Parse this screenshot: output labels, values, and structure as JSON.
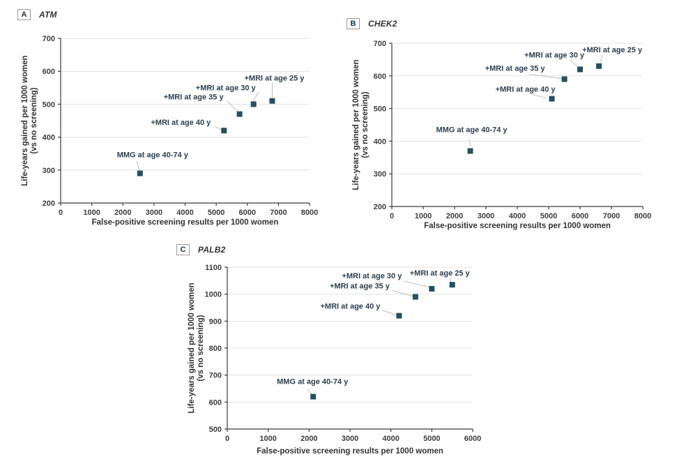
{
  "figure": {
    "background": "#ffffff",
    "marker_color": "#24505f",
    "marker_size": 8,
    "axis_color": "#3a3a3a",
    "grid_color": "#e2e2e2",
    "leader_color": "#bcbcbc",
    "panel_letter_color": "#16324f",
    "panel_box_border": "#999999",
    "gene_color": "#333333"
  },
  "chart_data": [
    {
      "type": "scatter",
      "panel": "A",
      "title": "ATM",
      "xlabel": "False-positive screening results per 1000 women",
      "ylabel_lines": [
        "Life-years gained per 1000 women",
        "(vs no screening)"
      ],
      "xlim": [
        0,
        8000
      ],
      "ylim": [
        200,
        700
      ],
      "xticks": [
        0,
        1000,
        2000,
        3000,
        4000,
        5000,
        6000,
        7000,
        8000
      ],
      "yticks": [
        200,
        300,
        400,
        500,
        600,
        700
      ],
      "grid": "horizontal",
      "marker": "square",
      "points": [
        {
          "label": "MMG at age 40-74 y",
          "x": 2550,
          "y": 290,
          "anchor": "middle",
          "label_offset": [
            18,
            -23
          ],
          "leader": [
            -5,
            -18,
            -1,
            -5
          ]
        },
        {
          "label": "+MRI at age 40 y",
          "x": 5250,
          "y": 420,
          "anchor": "end",
          "label_offset": [
            -19,
            -8
          ],
          "leader": [
            -13,
            -6,
            -3,
            -1
          ]
        },
        {
          "label": "+MRI at age 35 y",
          "x": 5750,
          "y": 470,
          "anchor": "end",
          "label_offset": [
            -23,
            -21
          ],
          "leader": [
            -18,
            -19,
            -1,
            -2
          ]
        },
        {
          "label": "+MRI at age 30 y",
          "x": 6200,
          "y": 500,
          "anchor": "end",
          "label_offset": [
            3,
            -20
          ],
          "leader": [
            7,
            -18,
            -2,
            -1
          ]
        },
        {
          "label": "+MRI at age 25 y",
          "x": 6800,
          "y": 510,
          "anchor": "middle",
          "label_offset": [
            3,
            -29
          ],
          "leader": [
            0,
            -26,
            0,
            -5
          ]
        }
      ],
      "layout": {
        "svg": [
          20,
          36,
          440,
          300
        ],
        "plot": [
          67,
          19,
          424,
          255
        ],
        "xtitle_y": 286,
        "ytitle_x": 19
      }
    },
    {
      "type": "scatter",
      "panel": "B",
      "title": "CHEK2",
      "xlabel": "False-positive screening results per 1000 women",
      "ylabel_lines": [
        "Life-years gained per 1000 women",
        "(vs no screening)"
      ],
      "xlim": [
        0,
        8000
      ],
      "ylim": [
        200,
        700
      ],
      "xticks": [
        0,
        1000,
        2000,
        3000,
        4000,
        5000,
        6000,
        7000,
        8000
      ],
      "yticks": [
        200,
        300,
        400,
        500,
        600,
        700
      ],
      "grid": "horizontal",
      "marker": "square",
      "points": [
        {
          "label": "MMG at age 40-74 y",
          "x": 2500,
          "y": 370,
          "anchor": "middle",
          "label_offset": [
            2,
            -27
          ],
          "leader": [
            -1,
            -17,
            0,
            -7
          ]
        },
        {
          "label": "+MRI at age 40 y",
          "x": 5100,
          "y": 530,
          "anchor": "end",
          "label_offset": [
            5,
            -10
          ],
          "leader": [
            -28,
            -6,
            -7,
            -1
          ]
        },
        {
          "label": "+MRI at age 35 y",
          "x": 5500,
          "y": 590,
          "anchor": "end",
          "label_offset": [
            -28,
            -12
          ],
          "leader": [
            -51,
            -7,
            -4,
            -1
          ]
        },
        {
          "label": "+MRI at age 30 y",
          "x": 6000,
          "y": 620,
          "anchor": "end",
          "label_offset": [
            6,
            -17
          ],
          "leader": [
            -15,
            -14,
            -4,
            -4
          ]
        },
        {
          "label": "+MRI at age 25 y",
          "x": 6600,
          "y": 630,
          "anchor": "end",
          "label_offset": [
            62,
            -20
          ],
          "leader": [
            5,
            -16,
            2,
            -5
          ]
        }
      ],
      "layout": {
        "svg": [
          492,
          44,
          450,
          300
        ],
        "plot": [
          70,
          18,
          430,
          252
        ],
        "xtitle_y": 283,
        "ytitle_x": 22
      }
    },
    {
      "type": "scatter",
      "panel": "C",
      "title": "PALB2",
      "xlabel": "False-positive screening results per 1000 women",
      "ylabel_lines": [
        "Life-years gained per 1000 women",
        "(vs no screening)"
      ],
      "xlim": [
        0,
        6000
      ],
      "ylim": [
        500,
        1100
      ],
      "xticks": [
        0,
        1000,
        2000,
        3000,
        4000,
        5000,
        6000
      ],
      "yticks": [
        500,
        600,
        700,
        800,
        900,
        1000,
        1100
      ],
      "grid": "horizontal",
      "marker": "square",
      "points": [
        {
          "label": "MMG at age 40-74 y",
          "x": 2100,
          "y": 620,
          "anchor": "middle",
          "label_offset": [
            -1,
            -18
          ],
          "leader": [
            -8,
            -11,
            -2,
            -3
          ]
        },
        {
          "label": "+MRI at age 40 y",
          "x": 4200,
          "y": 920,
          "anchor": "end",
          "label_offset": [
            -27,
            -10
          ],
          "leader": [
            -24,
            -8,
            -4,
            -1
          ]
        },
        {
          "label": "+MRI at age 35 y",
          "x": 4600,
          "y": 990,
          "anchor": "end",
          "label_offset": [
            -37,
            -12
          ],
          "leader": [
            -34,
            -9,
            -4,
            -1
          ]
        },
        {
          "label": "+MRI at age 30 y",
          "x": 5000,
          "y": 1020,
          "anchor": "end",
          "label_offset": [
            -43,
            -15
          ],
          "leader": [
            -40,
            -11,
            -3,
            -2
          ]
        },
        {
          "label": "+MRI at age 25 y",
          "x": 5500,
          "y": 1035,
          "anchor": "end",
          "label_offset": [
            25,
            -13
          ],
          "leader": [
            -3,
            -10,
            -2,
            -3
          ]
        }
      ],
      "layout": {
        "svg": [
          248,
          368,
          450,
          298
        ],
        "plot": [
          78,
          15,
          430,
          247
        ],
        "xtitle_y": 282,
        "ytitle_x": 30
      }
    }
  ]
}
